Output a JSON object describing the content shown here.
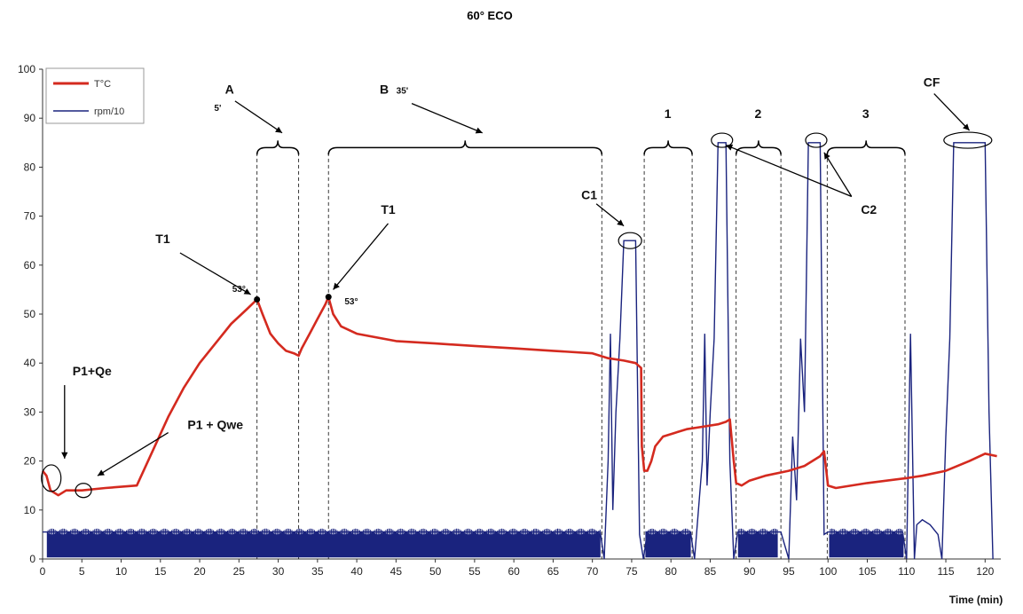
{
  "chart_data": {
    "type": "line",
    "title": "60° ECO",
    "xlabel": "Time (min)",
    "ylabel": "",
    "xlim": [
      0,
      122
    ],
    "ylim": [
      0,
      100
    ],
    "xticks": [
      0,
      5,
      10,
      15,
      20,
      25,
      30,
      35,
      40,
      45,
      50,
      55,
      60,
      65,
      70,
      75,
      80,
      85,
      90,
      95,
      100,
      105,
      110,
      115,
      120
    ],
    "yticks": [
      0,
      10,
      20,
      30,
      40,
      50,
      60,
      70,
      80,
      90,
      100
    ],
    "grid": false,
    "legend_position": "top-left",
    "colors": {
      "temperature": "#d42a1f",
      "rpm": "#1a237e"
    },
    "series": [
      {
        "name": "T°C",
        "x": [
          0,
          0.5,
          1,
          2,
          3,
          5,
          8,
          12,
          14,
          16,
          18,
          20,
          22,
          24,
          26,
          27.3,
          28,
          29,
          30,
          31,
          32,
          32.6,
          33,
          34,
          35,
          36,
          36.4,
          37,
          38,
          40,
          45,
          50,
          55,
          60,
          65,
          70,
          72,
          74,
          75.5,
          76.2,
          76.3,
          76.6,
          77,
          77.5,
          78,
          79,
          80,
          82,
          84,
          86,
          87,
          87.5,
          88,
          88.3,
          89,
          90,
          92,
          95,
          97,
          99,
          99.5,
          100,
          101,
          105,
          110,
          112,
          115,
          118,
          120,
          121.5
        ],
        "values": [
          18,
          17,
          14,
          13,
          14,
          14,
          14.5,
          15,
          22,
          29,
          35,
          40,
          44,
          48,
          51,
          53,
          50,
          46,
          44,
          42.5,
          42,
          41.5,
          43,
          46,
          49,
          52,
          53.5,
          50,
          47.5,
          46,
          44.5,
          44,
          43.5,
          43,
          42.5,
          42,
          41,
          40.5,
          40,
          39,
          23,
          18,
          18,
          20,
          23,
          25,
          25.5,
          26.5,
          27,
          27.5,
          28,
          28.5,
          20,
          15.5,
          15,
          16,
          17,
          18,
          19,
          21,
          22,
          15,
          14.5,
          15.5,
          16.5,
          17,
          18,
          20,
          21.5,
          21
        ]
      },
      {
        "name": "rpm/10",
        "x": [
          0,
          71,
          71.5,
          72,
          72.3,
          72.6,
          73,
          73.5,
          74,
          75.5,
          76,
          76.5,
          77,
          82.5,
          83,
          84,
          84.3,
          84.6,
          85,
          85.5,
          86,
          86.5,
          87,
          87.5,
          88,
          88.5,
          94,
          95,
          95.5,
          96,
          96.5,
          97,
          97.5,
          98,
          99,
          99.5,
          100,
          109.5,
          110,
          110.5,
          111,
          111.3,
          112,
          113,
          114,
          114.5,
          115,
          115.5,
          116,
          120,
          120.5,
          121
        ],
        "values": [
          5.5,
          5.5,
          0,
          20,
          46,
          10,
          30,
          45,
          65,
          65,
          5,
          0,
          5.5,
          5.5,
          0,
          20,
          46,
          15,
          30,
          45,
          85,
          85,
          85,
          20,
          0,
          5.5,
          5.5,
          0,
          25,
          12,
          45,
          30,
          85,
          85,
          85,
          5,
          5.5,
          5.5,
          0,
          46,
          0,
          7,
          8,
          7,
          5,
          0,
          25,
          45,
          85,
          85,
          30,
          0
        ]
      }
    ],
    "annotations": {
      "A": "A",
      "A_duration": "5'",
      "B": "B",
      "B_duration": "35'",
      "phase1": "1",
      "phase2": "2",
      "phase3": "3",
      "CF": "CF",
      "C1": "C1",
      "C2": "C2",
      "T1_first": "T1",
      "T1_second": "T1",
      "temp_first": "53°",
      "temp_second": "53°",
      "P1Qe": "P1+Qe",
      "P1Qwe": "P1 + Qwe"
    }
  }
}
